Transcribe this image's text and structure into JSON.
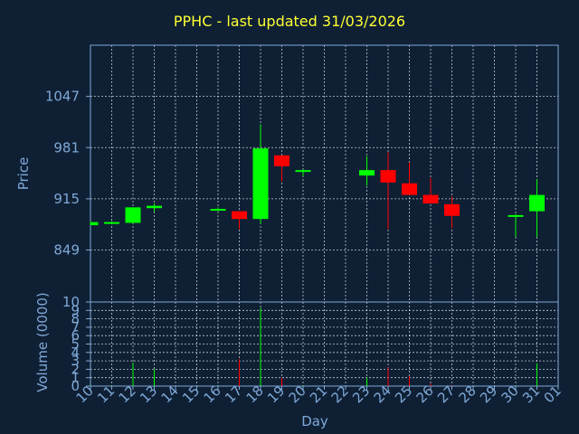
{
  "chart_data": [
    {
      "type": "candlestick",
      "title": "PPHC - last updated 31/03/2026",
      "ylabel": "Price",
      "ylim": [
        782,
        1113
      ],
      "yticks": [
        849,
        915,
        981,
        1047
      ],
      "colors": {
        "up": "#00ff00",
        "down": "#ff0000",
        "background": "#0f2035",
        "grid": "#ffffff",
        "axis_text": "#7fa8d6",
        "title": "#ffff33"
      },
      "candles": [
        {
          "day": 10,
          "open": 881,
          "close": 885,
          "high": 886,
          "low": 881
        },
        {
          "day": 11,
          "open": 883,
          "close": 885,
          "high": 886,
          "low": 883
        },
        {
          "day": 12,
          "open": 884,
          "close": 904,
          "high": 904,
          "low": 883
        },
        {
          "day": 13,
          "open": 903,
          "close": 906,
          "high": 909,
          "low": 898
        },
        {
          "day": 16,
          "open": 901,
          "close": 902,
          "high": 904,
          "low": 899
        },
        {
          "day": 17,
          "open": 899,
          "close": 889,
          "high": 899,
          "low": 876
        },
        {
          "day": 18,
          "open": 889,
          "close": 980,
          "high": 1011,
          "low": 883
        },
        {
          "day": 19,
          "open": 971,
          "close": 957,
          "high": 971,
          "low": 937
        },
        {
          "day": 20,
          "open": 950,
          "close": 952,
          "high": 953,
          "low": 944
        },
        {
          "day": 23,
          "open": 945,
          "close": 952,
          "high": 970,
          "low": 932
        },
        {
          "day": 24,
          "open": 952,
          "close": 936,
          "high": 975,
          "low": 876
        },
        {
          "day": 25,
          "open": 935,
          "close": 920,
          "high": 962,
          "low": 920
        },
        {
          "day": 26,
          "open": 920,
          "close": 909,
          "high": 942,
          "low": 909
        },
        {
          "day": 27,
          "open": 908,
          "close": 893,
          "high": 918,
          "low": 877
        },
        {
          "day": 30,
          "open": 892,
          "close": 894,
          "high": 895,
          "low": 866
        },
        {
          "day": 31,
          "open": 899,
          "close": 920,
          "high": 940,
          "low": 866
        }
      ]
    },
    {
      "type": "bar",
      "ylabel": "Volume (0000)",
      "xlabel": "Day",
      "ylim": [
        0,
        10
      ],
      "yticks": [
        "0",
        "1",
        "2",
        "3",
        "4",
        "5",
        "6",
        "7",
        "8",
        "9",
        "10"
      ],
      "x_ticks": [
        "10",
        "11",
        "12",
        "13",
        "14",
        "15",
        "16",
        "17",
        "18",
        "19",
        "20",
        "21",
        "22",
        "23",
        "24",
        "25",
        "26",
        "27",
        "28",
        "29",
        "30",
        "31",
        "01"
      ],
      "bars": [
        {
          "day": 10,
          "value": 0.05,
          "dir": "up"
        },
        {
          "day": 11,
          "value": 0.05,
          "dir": "up"
        },
        {
          "day": 12,
          "value": 2.8,
          "dir": "up"
        },
        {
          "day": 13,
          "value": 2.0,
          "dir": "up"
        },
        {
          "day": 16,
          "value": 0.05,
          "dir": "up"
        },
        {
          "day": 17,
          "value": 3.2,
          "dir": "down"
        },
        {
          "day": 18,
          "value": 9.3,
          "dir": "up"
        },
        {
          "day": 19,
          "value": 1.0,
          "dir": "down"
        },
        {
          "day": 20,
          "value": 0.05,
          "dir": "up"
        },
        {
          "day": 23,
          "value": 1.0,
          "dir": "up"
        },
        {
          "day": 24,
          "value": 2.2,
          "dir": "down"
        },
        {
          "day": 25,
          "value": 1.2,
          "dir": "down"
        },
        {
          "day": 26,
          "value": 0.3,
          "dir": "down"
        },
        {
          "day": 27,
          "value": 0.05,
          "dir": "down"
        },
        {
          "day": 30,
          "value": 0.05,
          "dir": "up"
        },
        {
          "day": 31,
          "value": 2.7,
          "dir": "up"
        }
      ]
    }
  ]
}
